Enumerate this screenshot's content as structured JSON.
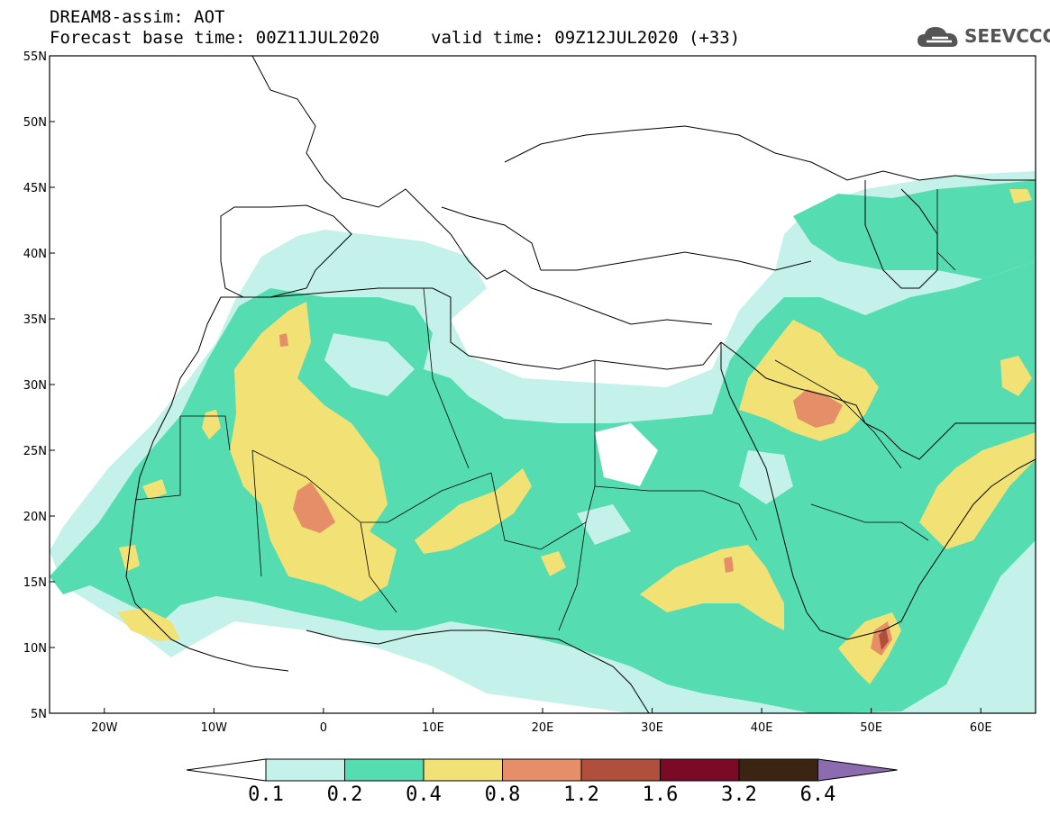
{
  "header": {
    "line1": "DREAM8-assim: AOT",
    "base_time": "Forecast base time: 00Z11JUL2020",
    "valid_time": "valid time: 09Z12JUL2020 (+33)"
  },
  "logo": {
    "text": "SEEVCCC",
    "icon": "cloud-icon"
  },
  "map": {
    "lon_range": [
      -25,
      65
    ],
    "lat_range": [
      5,
      55
    ],
    "lat_ticks": [
      "55N",
      "50N",
      "45N",
      "40N",
      "35N",
      "30N",
      "25N",
      "20N",
      "15N",
      "10N",
      "5N"
    ],
    "lon_ticks": [
      "20W",
      "10W",
      "0",
      "10E",
      "20E",
      "30E",
      "40E",
      "50E",
      "60E"
    ]
  },
  "colorbar": {
    "labels": [
      "0.1",
      "0.2",
      "0.4",
      "0.8",
      "1.2",
      "1.6",
      "3.2",
      "6.4"
    ],
    "colors": [
      "#c4f2ea",
      "#55dcb0",
      "#f2e276",
      "#e58e68",
      "#b0503c",
      "#7a0a26",
      "#3c2412",
      "#8c6cae"
    ]
  }
}
